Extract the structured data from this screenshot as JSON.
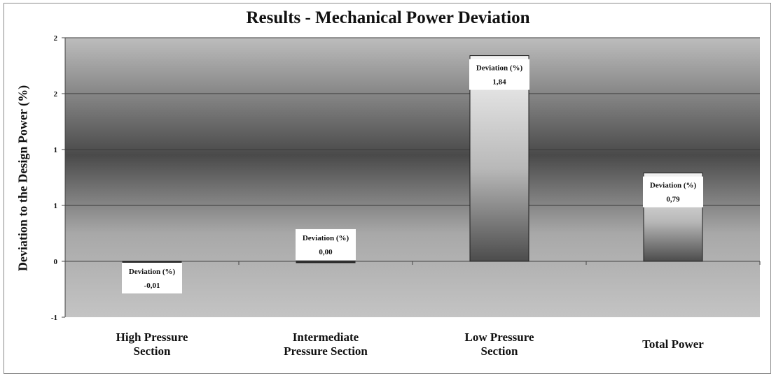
{
  "chart_data": {
    "type": "bar",
    "title": "Results - Mechanical Power Deviation",
    "xlabel": "",
    "ylabel": "Deviation to the Design Power (%)",
    "categories": [
      "High Pressure Section",
      "Intermediate Pressure Section",
      "Low Pressure Section",
      "Total Power"
    ],
    "values": [
      -0.01,
      0.0,
      1.84,
      0.79
    ],
    "data_labels": [
      {
        "caption": "Deviation (%)",
        "value": "-0,01"
      },
      {
        "caption": "Deviation (%)",
        "value": "0,00"
      },
      {
        "caption": "Deviation (%)",
        "value": "1,84"
      },
      {
        "caption": "Deviation (%)",
        "value": "0,79"
      }
    ],
    "ylim": [
      -0.5,
      2.0
    ],
    "yticks": [
      -0.5,
      0,
      0.5,
      1.0,
      1.5,
      2.0
    ],
    "ytick_labels": [
      "-1",
      "0",
      "1",
      "1",
      "2",
      "2"
    ],
    "grid": true,
    "legend": "none"
  }
}
